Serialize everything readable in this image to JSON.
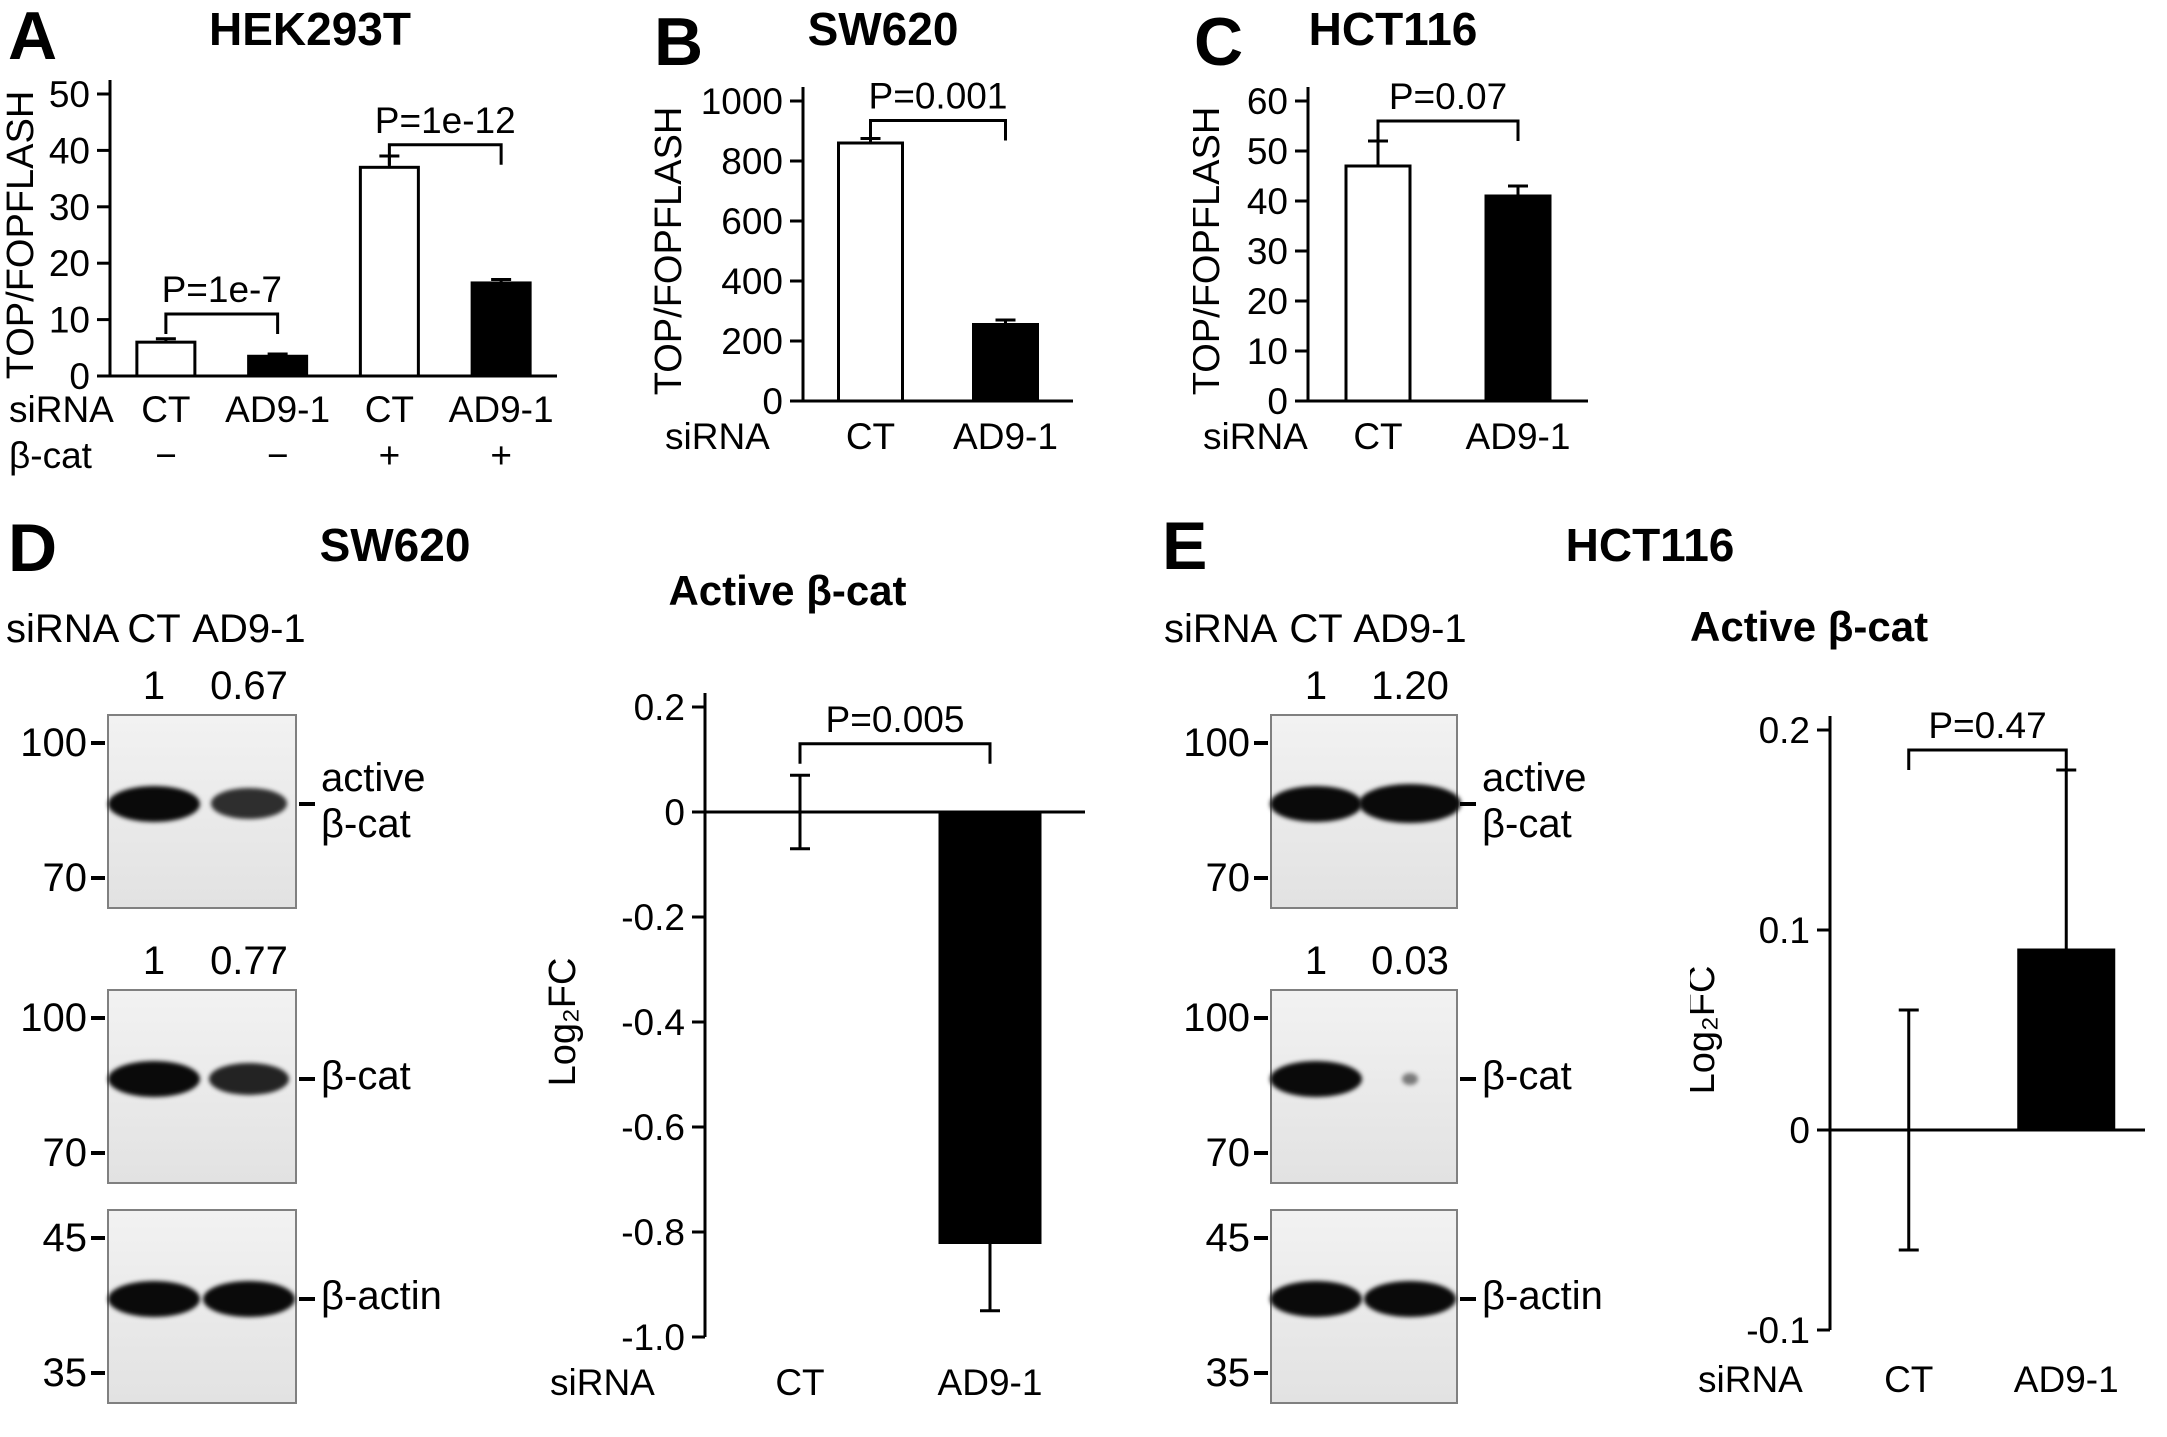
{
  "colors": {
    "background": "#ffffff",
    "axis": "#000000",
    "bar_open_fill": "#ffffff",
    "bar_filled_fill": "#000000"
  },
  "figure": {
    "panels": {
      "A": {
        "letter": "A",
        "title": "HEK293T"
      },
      "B": {
        "letter": "B",
        "title": "SW620"
      },
      "C": {
        "letter": "C",
        "title": "HCT116"
      },
      "D": {
        "letter": "D",
        "title": "SW620"
      },
      "E": {
        "letter": "E",
        "title": "HCT116"
      }
    }
  },
  "chart_data": [
    {
      "panel": "A",
      "type": "bar",
      "title": "HEK293T",
      "ylabel": "TOP/FOPFLASH",
      "ymin": 0,
      "ymax": 50,
      "yticks": [
        "50",
        "40",
        "30",
        "20",
        "10",
        "0"
      ],
      "grid": false,
      "legend": "none",
      "bars": [
        {
          "group": "siRNA CT / β-cat −",
          "value": 6,
          "err": 0.6,
          "fill": "white"
        },
        {
          "group": "siRNA AD9-1 / β-cat −",
          "value": 3.5,
          "err": 0.4,
          "fill": "black"
        },
        {
          "group": "siRNA CT / β-cat +",
          "value": 37,
          "err": 2,
          "fill": "white"
        },
        {
          "group": "siRNA AD9-1 / β-cat +",
          "value": 16.5,
          "err": 0.6,
          "fill": "black"
        }
      ],
      "xrows": [
        {
          "header": "siRNA",
          "labels": [
            "CT",
            "AD9-1",
            "CT",
            "AD9-1"
          ]
        },
        {
          "header": "β-cat",
          "labels": [
            "−",
            "−",
            "+",
            "+"
          ]
        }
      ],
      "brackets": [
        {
          "from": 0,
          "to": 1,
          "y": 11,
          "label": "P=1e-7"
        },
        {
          "from": 2,
          "to": 3,
          "y": 41,
          "label": "P=1e-12"
        }
      ]
    },
    {
      "panel": "B",
      "type": "bar",
      "title": "SW620",
      "ylabel": "TOP/FOPFLASH",
      "ymin": 0,
      "ymax": 1000,
      "yticks": [
        "1000",
        "800",
        "600",
        "400",
        "200",
        "0"
      ],
      "grid": false,
      "legend": "none",
      "bars": [
        {
          "group": "siRNA CT",
          "value": 860,
          "err": 15,
          "fill": "white"
        },
        {
          "group": "siRNA AD9-1",
          "value": 255,
          "err": 15,
          "fill": "black"
        }
      ],
      "xrows": [
        {
          "header": "siRNA",
          "labels": [
            "CT",
            "AD9-1"
          ]
        }
      ],
      "brackets": [
        {
          "from": 0,
          "to": 1,
          "y": 935,
          "label": "P=0.001"
        }
      ]
    },
    {
      "panel": "C",
      "type": "bar",
      "title": "HCT116",
      "ylabel": "TOP/FOPFLASH",
      "ymin": 0,
      "ymax": 60,
      "yticks": [
        "60",
        "50",
        "40",
        "30",
        "20",
        "10",
        "0"
      ],
      "grid": false,
      "legend": "none",
      "bars": [
        {
          "group": "siRNA CT",
          "value": 47,
          "err": 5,
          "fill": "white"
        },
        {
          "group": "siRNA AD9-1",
          "value": 41,
          "err": 2,
          "fill": "black"
        }
      ],
      "xrows": [
        {
          "header": "siRNA",
          "labels": [
            "CT",
            "AD9-1"
          ]
        }
      ],
      "brackets": [
        {
          "from": 0,
          "to": 1,
          "y": 56,
          "label": "P=0.07"
        }
      ]
    },
    {
      "panel": "D",
      "type": "bar",
      "title": "Active β-cat",
      "cell_line": "SW620",
      "ylabel": "Log₂FC",
      "ymin": -1.0,
      "ymax": 0.2,
      "yticks": [
        "0.2",
        "0",
        "-0.2",
        "-0.4",
        "-0.6",
        "-0.8",
        "-1.0"
      ],
      "grid": false,
      "legend": "none",
      "bars": [
        {
          "group": "siRNA CT",
          "value": 0,
          "err": 0.07,
          "fill": "white"
        },
        {
          "group": "siRNA AD9-1",
          "value": -0.82,
          "err": 0.13,
          "fill": "black"
        }
      ],
      "xrows": [
        {
          "header": "siRNA",
          "labels": [
            "CT",
            "AD9-1"
          ]
        }
      ],
      "brackets": [
        {
          "from": 0,
          "to": 1,
          "y": 0.13,
          "label": "P=0.005"
        }
      ]
    },
    {
      "panel": "E",
      "type": "bar",
      "title": "Active β-cat",
      "cell_line": "HCT116",
      "ylabel": "Log₂FC",
      "ymin": -0.1,
      "ymax": 0.2,
      "yticks": [
        "0.2",
        "0.1",
        "0",
        "-0.1"
      ],
      "grid": false,
      "legend": "none",
      "bars": [
        {
          "group": "siRNA CT",
          "value": 0,
          "err": 0.06,
          "fill": "white"
        },
        {
          "group": "siRNA AD9-1",
          "value": 0.09,
          "err": 0.09,
          "fill": "black"
        }
      ],
      "xrows": [
        {
          "header": "siRNA",
          "labels": [
            "CT",
            "AD9-1"
          ]
        }
      ],
      "brackets": [
        {
          "from": 0,
          "to": 1,
          "y": 0.19,
          "label": "P=0.47"
        }
      ]
    }
  ],
  "blots": {
    "D": {
      "cell_line": "SW620",
      "lane_header": "siRNA",
      "lanes": [
        "CT",
        "AD9-1"
      ],
      "rows": [
        {
          "quant": [
            "1",
            "0.67"
          ],
          "markers": [
            "100",
            "70"
          ],
          "label": [
            "active",
            "β-cat"
          ]
        },
        {
          "quant": [
            "1",
            "0.77"
          ],
          "markers": [
            "100",
            "70"
          ],
          "label": [
            "β-cat"
          ]
        },
        {
          "quant": null,
          "markers": [
            "45",
            "35"
          ],
          "label": [
            "β-actin"
          ]
        }
      ]
    },
    "E": {
      "cell_line": "HCT116",
      "lane_header": "siRNA",
      "lanes": [
        "CT",
        "AD9-1"
      ],
      "rows": [
        {
          "quant": [
            "1",
            "1.20"
          ],
          "markers": [
            "100",
            "70"
          ],
          "label": [
            "active",
            "β-cat"
          ]
        },
        {
          "quant": [
            "1",
            "0.03"
          ],
          "markers": [
            "100",
            "70"
          ],
          "label": [
            "β-cat"
          ]
        },
        {
          "quant": null,
          "markers": [
            "45",
            "35"
          ],
          "label": [
            "β-actin"
          ]
        }
      ]
    }
  }
}
